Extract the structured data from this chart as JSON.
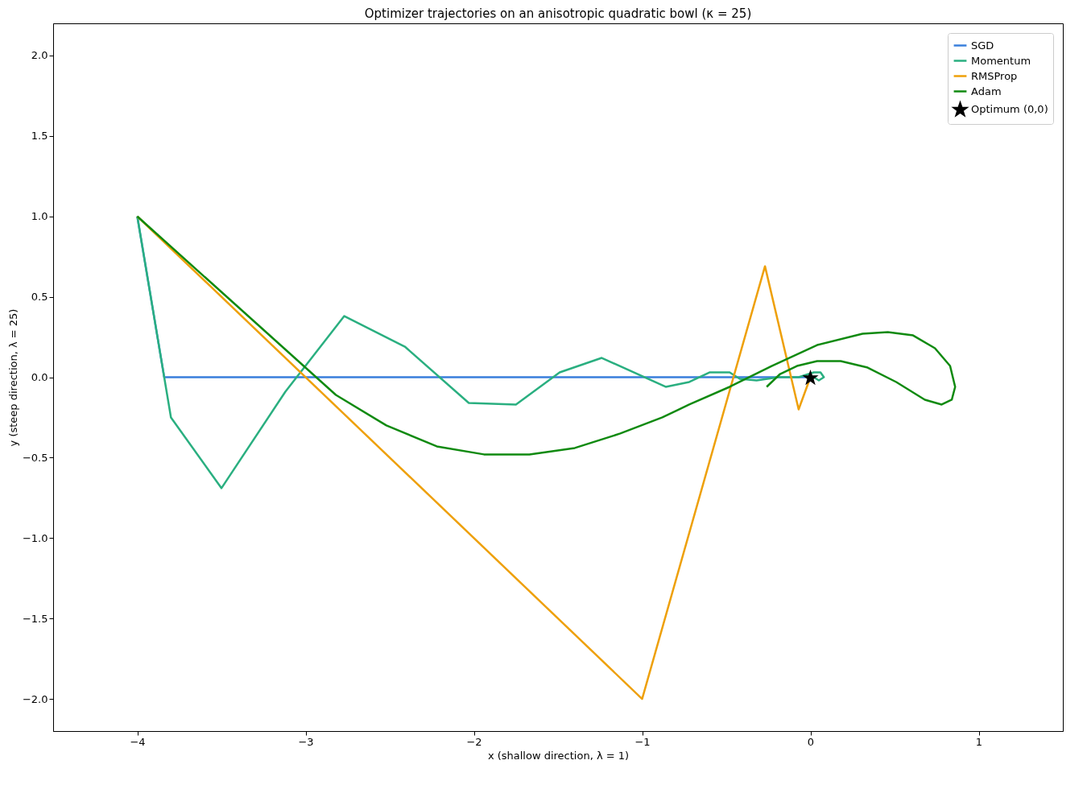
{
  "chart_data": {
    "type": "line",
    "title": "Optimizer trajectories on an anisotropic quadratic bowl (κ = 25)",
    "xlabel": "x  (shallow direction, λ = 1)",
    "ylabel": "y  (steep direction, λ = 25)",
    "xlim": [
      -4.5,
      1.5
    ],
    "ylim": [
      -2.2,
      2.2
    ],
    "xticks": [
      {
        "value": -4,
        "label": "−4"
      },
      {
        "value": -3,
        "label": "−3"
      },
      {
        "value": -2,
        "label": "−2"
      },
      {
        "value": -1,
        "label": "−1"
      },
      0,
      1
    ],
    "yticks": [
      {
        "value": -2,
        "label": "−2.0"
      },
      {
        "value": -1.5,
        "label": "−1.5"
      },
      {
        "value": -1,
        "label": "−1.0"
      },
      {
        "value": -0.5,
        "label": "−0.5"
      },
      {
        "value": 0,
        "label": "0.0"
      },
      {
        "value": 0.5,
        "label": "0.5"
      },
      {
        "value": 1,
        "label": "1.0"
      },
      {
        "value": 1.5,
        "label": "1.5"
      },
      {
        "value": 2,
        "label": "2.0"
      }
    ],
    "grid": false,
    "legend": "top right",
    "series": [
      {
        "name": "SGD",
        "type": "line",
        "color": "#3a7fdc",
        "x": [
          -4,
          -3.84,
          0
        ],
        "values": [
          1,
          0,
          0
        ]
      },
      {
        "name": "Momentum",
        "type": "line",
        "color": "#2aaf80",
        "x": [
          -4,
          -3.8,
          -3.5,
          -3.12,
          -2.77,
          -2.41,
          -2.03,
          -1.75,
          -1.49,
          -1.24,
          -0.86,
          -0.72,
          -0.6,
          -0.48,
          -0.42,
          -0.32,
          -0.19,
          -0.07,
          0.02,
          0.06,
          0.08,
          0.05,
          0.02
        ],
        "values": [
          1,
          -0.25,
          -0.69,
          -0.09,
          0.38,
          0.19,
          -0.16,
          -0.17,
          0.03,
          0.12,
          -0.06,
          -0.03,
          0.03,
          0.03,
          -0.01,
          -0.02,
          0,
          0,
          0.03,
          0.03,
          0,
          -0.02,
          0
        ]
      },
      {
        "name": "RMSProp",
        "type": "line",
        "color": "#eea00a",
        "x": [
          -4,
          -1.0,
          -0.27,
          -0.07,
          0
        ],
        "values": [
          1,
          -2.0,
          0.69,
          -0.2,
          0
        ]
      },
      {
        "name": "Adam",
        "type": "line",
        "color": "#108a10",
        "x": [
          -4,
          -2.82,
          -2.52,
          -2.22,
          -1.94,
          -1.67,
          -1.4,
          -1.13,
          -0.88,
          -0.72,
          -0.48,
          -0.23,
          0.04,
          0.31,
          0.46,
          0.61,
          0.74,
          0.83,
          0.86,
          0.84,
          0.78,
          0.68,
          0.51,
          0.34,
          0.18,
          0.04,
          -0.08,
          -0.18,
          -0.26
        ],
        "values": [
          1,
          -0.11,
          -0.3,
          -0.43,
          -0.48,
          -0.48,
          -0.44,
          -0.35,
          -0.25,
          -0.17,
          -0.06,
          0.07,
          0.2,
          0.27,
          0.28,
          0.26,
          0.18,
          0.07,
          -0.06,
          -0.14,
          -0.17,
          -0.14,
          -0.03,
          0.06,
          0.1,
          0.1,
          0.07,
          0.02,
          -0.06
        ]
      },
      {
        "name": "Optimum (0,0)",
        "type": "scatter",
        "marker": "star",
        "color": "#000000",
        "x": [
          0
        ],
        "values": [
          0
        ]
      }
    ]
  }
}
